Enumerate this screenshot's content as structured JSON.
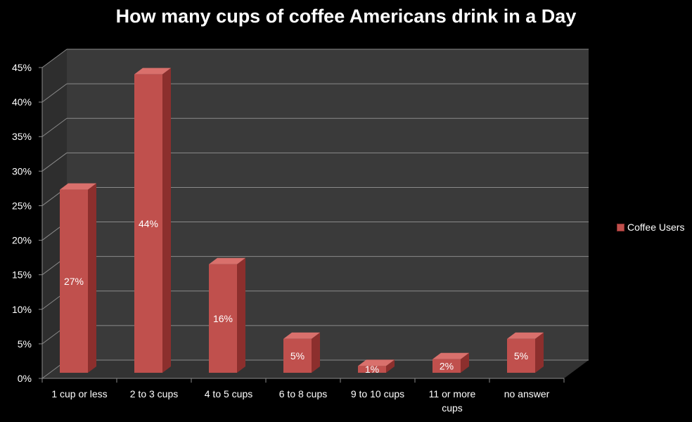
{
  "chart_data": {
    "type": "bar",
    "title": "How many cups of coffee Americans drink in a Day",
    "categories": [
      [
        "1 cup or less"
      ],
      [
        "2 to 3 cups"
      ],
      [
        "4 to 5 cups"
      ],
      [
        "6 to 8 cups"
      ],
      [
        "9 to 10 cups"
      ],
      [
        "11 or more",
        "cups"
      ],
      [
        "no answer"
      ]
    ],
    "series": [
      {
        "name": "Coffee Users",
        "values": [
          27,
          44,
          16,
          5,
          1,
          2,
          5
        ],
        "labels": [
          "27%",
          "44%",
          "16%",
          "5%",
          "1%",
          "2%",
          "5%"
        ]
      }
    ],
    "yticks": [
      "0%",
      "5%",
      "10%",
      "15%",
      "20%",
      "25%",
      "30%",
      "35%",
      "40%",
      "45%"
    ],
    "ylim": [
      0,
      45
    ],
    "legend_position": "right",
    "grid": true,
    "colors": {
      "bar_front": "#c0504d",
      "bar_side": "#8c2f2d",
      "bar_top": "#d9706c",
      "back_wall": "#3a3a3a",
      "side_wall": "#2e2e2e",
      "floor": "#333333",
      "grid": "#8a8a8a"
    }
  }
}
